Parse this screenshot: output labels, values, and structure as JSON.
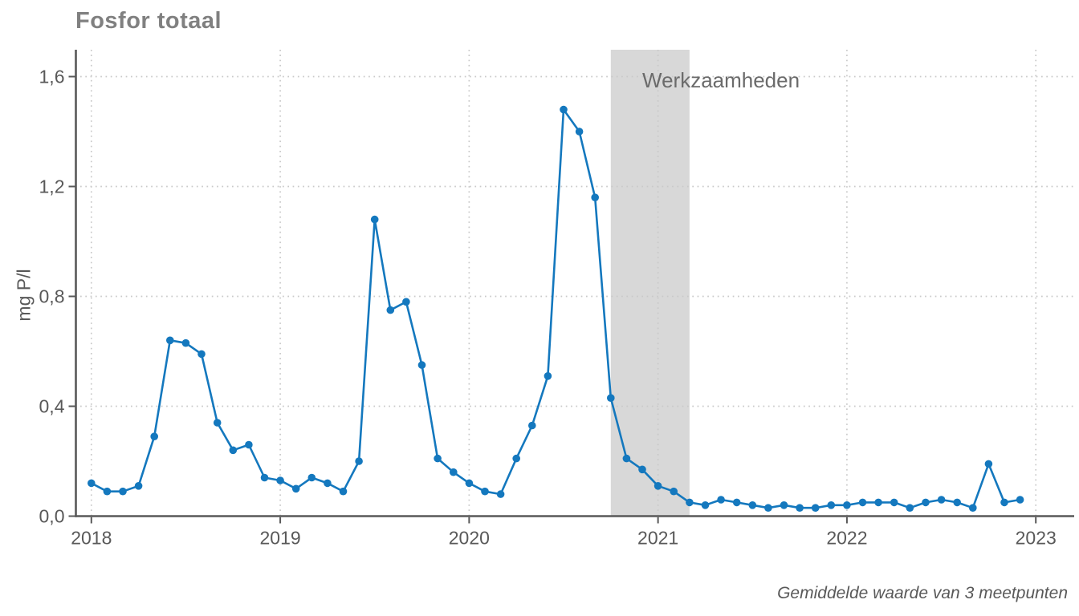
{
  "title": "Fosfor totaal",
  "caption": "Gemiddelde waarde van 3 meetpunten",
  "colors": {
    "line": "#1478be",
    "band": "#d8d8d8",
    "grid": "#c9c9c9",
    "axis": "#595959",
    "tick_label": "#595959",
    "title_text": "#808080",
    "annotation_text": "#6b6b6b",
    "background": "#ffffff"
  },
  "chart_data": {
    "type": "line",
    "title": "Fosfor totaal",
    "xlabel": "",
    "ylabel": "mg P/l",
    "x_unit": "month",
    "grid": "dotted",
    "legend": "none",
    "ylim": [
      0,
      1.7
    ],
    "x_tick_labels": [
      "2018",
      "2019",
      "2020",
      "2021",
      "2022",
      "2023"
    ],
    "y_ticks": [
      {
        "label": "0,0",
        "value": 0.0
      },
      {
        "label": "0,4",
        "value": 0.4
      },
      {
        "label": "0,8",
        "value": 0.8
      },
      {
        "label": "1,2",
        "value": 1.2
      },
      {
        "label": "1,6",
        "value": 1.6
      }
    ],
    "annotation": {
      "label": "Werkzaamheden",
      "band_start": "2020-10",
      "band_end": "2021-03"
    },
    "x": [
      "2018-01",
      "2018-02",
      "2018-03",
      "2018-04",
      "2018-05",
      "2018-06",
      "2018-07",
      "2018-08",
      "2018-09",
      "2018-10",
      "2018-11",
      "2018-12",
      "2019-01",
      "2019-02",
      "2019-03",
      "2019-04",
      "2019-05",
      "2019-06",
      "2019-07",
      "2019-08",
      "2019-09",
      "2019-10",
      "2019-11",
      "2019-12",
      "2020-01",
      "2020-02",
      "2020-03",
      "2020-04",
      "2020-05",
      "2020-06",
      "2020-07",
      "2020-08",
      "2020-09",
      "2020-10",
      "2020-11",
      "2020-12",
      "2021-01",
      "2021-02",
      "2021-03",
      "2021-04",
      "2021-05",
      "2021-06",
      "2021-07",
      "2021-08",
      "2021-09",
      "2021-10",
      "2021-11",
      "2021-12",
      "2022-01",
      "2022-02",
      "2022-03",
      "2022-04",
      "2022-05",
      "2022-06",
      "2022-07",
      "2022-08",
      "2022-09",
      "2022-10",
      "2022-11",
      "2022-12"
    ],
    "series": [
      {
        "name": "Fosfor totaal (mg P/l)",
        "values": [
          0.12,
          0.09,
          0.09,
          0.11,
          0.29,
          0.64,
          0.63,
          0.59,
          0.34,
          0.24,
          0.26,
          0.14,
          0.13,
          0.1,
          0.14,
          0.12,
          0.09,
          0.2,
          1.08,
          0.75,
          0.78,
          0.55,
          0.21,
          0.16,
          0.12,
          0.09,
          0.08,
          0.21,
          0.33,
          0.51,
          1.48,
          1.4,
          1.16,
          0.43,
          0.21,
          0.17,
          0.11,
          0.09,
          0.05,
          0.04,
          0.06,
          0.05,
          0.04,
          0.03,
          0.04,
          0.03,
          0.03,
          0.04,
          0.04,
          0.05,
          0.05,
          0.05,
          0.03,
          0.05,
          0.06,
          0.05,
          0.03,
          0.19,
          0.05,
          0.06
        ]
      }
    ]
  }
}
